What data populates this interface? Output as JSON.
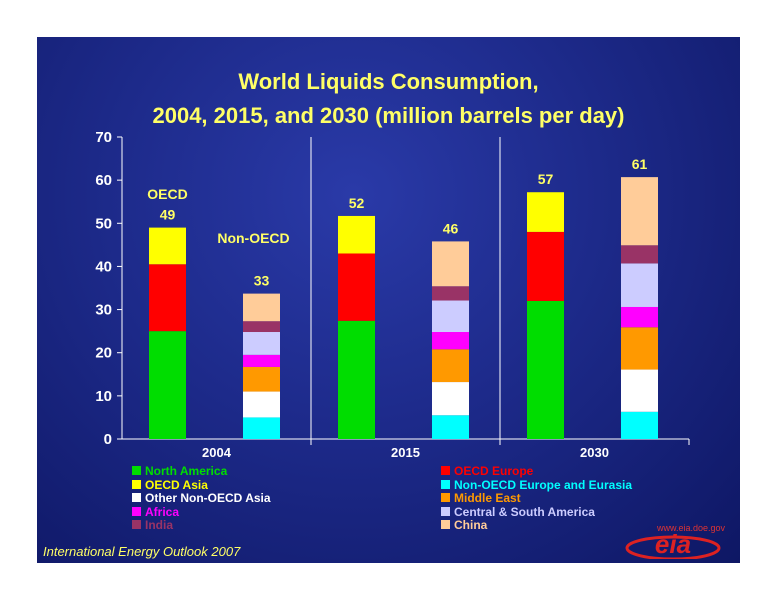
{
  "chart_data": {
    "type": "bar",
    "stacked": true,
    "title_line1": "World Liquids Consumption,",
    "title_line2": "2004, 2015, and 2030 (million barrels per day)",
    "ylim": [
      0,
      70
    ],
    "yticks": [
      "0",
      "10",
      "20",
      "30",
      "40",
      "50",
      "60",
      "70"
    ],
    "grid": false,
    "groups": [
      {
        "category": "2004",
        "bars": [
          {
            "group": "OECD",
            "total_label": "49",
            "values": {
              "North America": 25,
              "OECD Europe": 15.5,
              "OECD Asia": 8.5
            }
          },
          {
            "group": "Non-OECD",
            "total_label": "33",
            "values": {
              "Non-OECD Europe and Eurasia": 5,
              "Other Non-OECD Asia": 6,
              "Middle East": 5.7,
              "Africa": 2.8,
              "Central & South America": 5.3,
              "India": 2.5,
              "China": 6.4
            }
          }
        ]
      },
      {
        "category": "2015",
        "bars": [
          {
            "group": "OECD",
            "total_label": "52",
            "values": {
              "North America": 27.4,
              "OECD Europe": 15.6,
              "OECD Asia": 8.7
            }
          },
          {
            "group": "Non-OECD",
            "total_label": "46",
            "values": {
              "Non-OECD Europe and Eurasia": 5.5,
              "Other Non-OECD Asia": 7.7,
              "Middle East": 7.6,
              "Africa": 4,
              "Central & South America": 7.3,
              "India": 3.3,
              "China": 10.4
            }
          }
        ]
      },
      {
        "category": "2030",
        "bars": [
          {
            "group": "OECD",
            "total_label": "57",
            "values": {
              "North America": 32,
              "OECD Europe": 16,
              "OECD Asia": 9.2
            }
          },
          {
            "group": "Non-OECD",
            "total_label": "61",
            "values": {
              "Non-OECD Europe and Eurasia": 6.3,
              "Other Non-OECD Asia": 9.8,
              "Middle East": 9.8,
              "Africa": 4.7,
              "Central & South America": 10.1,
              "India": 4.2,
              "China": 15.8
            }
          }
        ]
      }
    ],
    "annotations": {
      "oecd": "OECD",
      "non_oecd": "Non-OECD"
    },
    "series": [
      {
        "name": "North America",
        "color": "#00dd00"
      },
      {
        "name": "OECD Europe",
        "color": "#ff0000"
      },
      {
        "name": "OECD Asia",
        "color": "#ffff00"
      },
      {
        "name": "Non-OECD Europe and Eurasia",
        "color": "#00ffff"
      },
      {
        "name": "Other Non-OECD Asia",
        "color": "#ffffff"
      },
      {
        "name": "Middle East",
        "color": "#ff9900"
      },
      {
        "name": "Africa",
        "color": "#ff00ff"
      },
      {
        "name": "Central & South America",
        "color": "#ccccff"
      },
      {
        "name": "India",
        "color": "#993366"
      },
      {
        "name": "China",
        "color": "#ffcc99"
      }
    ],
    "legend": {
      "placement": "bottom",
      "columns": [
        [
          "North America",
          "OECD Asia",
          "Other Non-OECD Asia",
          "Africa",
          "India"
        ],
        [
          "OECD Europe",
          "Non-OECD Europe and Eurasia",
          "Middle East",
          "Central & South America",
          "China"
        ]
      ]
    }
  },
  "footer": {
    "source": "International Energy Outlook 2007",
    "logo_text": "eia",
    "logo_url": "www.eia.doe.gov"
  }
}
